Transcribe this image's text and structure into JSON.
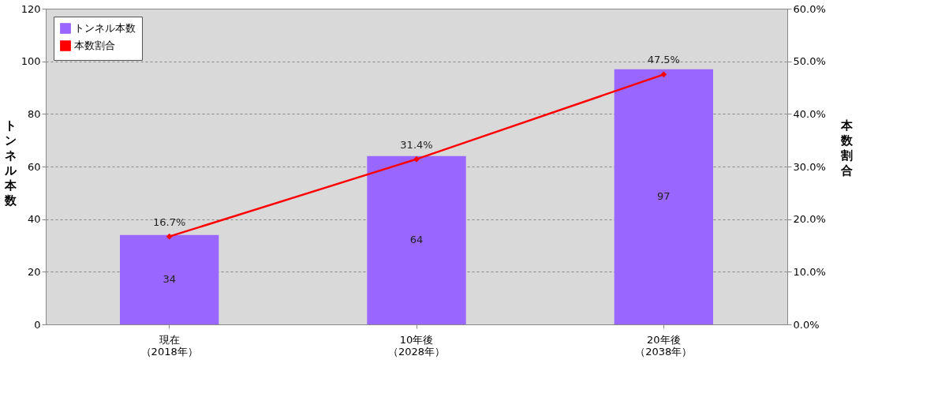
{
  "chart_data": {
    "type": "bar",
    "categories": [
      "現在（2018年）",
      "10年後（2028年）",
      "20年後（2038年）"
    ],
    "series": [
      {
        "name": "トンネル本数",
        "color": "#9966ff",
        "values": [
          34,
          64,
          97
        ],
        "value_labels": [
          "34",
          "64",
          "97"
        ]
      },
      {
        "name": "本数割合",
        "type": "line",
        "axis": "y2",
        "color": "#ff0000",
        "marker": "diamond",
        "line_style": "solid",
        "values": [
          16.7,
          31.4,
          47.5
        ],
        "value_labels": [
          "16.7%",
          "31.4%",
          "47.5%"
        ]
      }
    ],
    "ylabel": "トンネル本数",
    "y2label": "本数割合",
    "ylim": [
      0,
      120
    ],
    "yticks": [
      0,
      20,
      40,
      60,
      80,
      100,
      120
    ],
    "y2lim": [
      0,
      60
    ],
    "y2ticks": [
      {
        "value": 0,
        "label": "0.0%"
      },
      {
        "value": 10,
        "label": "10.0%"
      },
      {
        "value": 20,
        "label": "20.0%"
      },
      {
        "value": 30,
        "label": "30.0%"
      },
      {
        "value": 40,
        "label": "40.0%"
      },
      {
        "value": 50,
        "label": "50.0%"
      },
      {
        "value": 60,
        "label": "60.0%"
      }
    ],
    "grid": "y",
    "legend": "top left"
  }
}
